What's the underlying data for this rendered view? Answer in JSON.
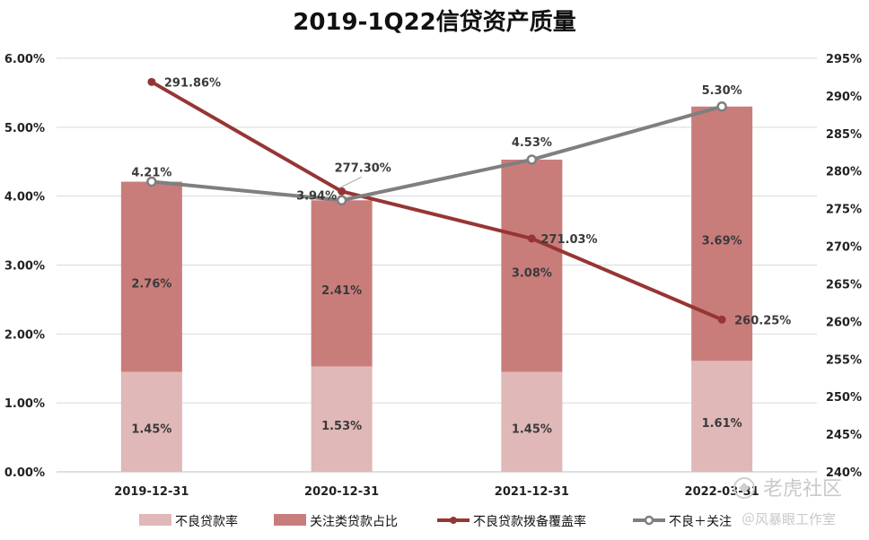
{
  "chart_data": {
    "type": "bar",
    "title": "2019-1Q22信贷资产质量",
    "categories": [
      "2019-12-31",
      "2020-12-31",
      "2021-12-31",
      "2022-03-31"
    ],
    "y_left": {
      "ticks": [
        "0.00%",
        "1.00%",
        "2.00%",
        "3.00%",
        "4.00%",
        "5.00%",
        "6.00%"
      ],
      "range": [
        0,
        6
      ]
    },
    "y_right": {
      "ticks": [
        "240%",
        "245%",
        "250%",
        "255%",
        "260%",
        "265%",
        "270%",
        "275%",
        "280%",
        "285%",
        "290%",
        "295%"
      ],
      "range": [
        240,
        295
      ]
    },
    "series": [
      {
        "name": "不良贷款率",
        "kind": "stacked-bar",
        "axis": "left",
        "color": "#e0b8b7",
        "values": [
          1.45,
          1.53,
          1.45,
          1.61
        ],
        "labels": [
          "1.45%",
          "1.53%",
          "1.45%",
          "1.61%"
        ]
      },
      {
        "name": "关注类贷款占比",
        "kind": "stacked-bar",
        "axis": "left",
        "color": "#c97d7b",
        "values": [
          2.76,
          2.41,
          3.08,
          3.69
        ],
        "labels": [
          "2.76%",
          "2.41%",
          "3.08%",
          "3.69%"
        ]
      },
      {
        "name": "不良贷款拨备覆盖率",
        "kind": "line",
        "axis": "right",
        "color": "#963634",
        "values": [
          291.86,
          277.3,
          271.03,
          260.25
        ],
        "labels": [
          "291.86%",
          "277.30%",
          "271.03%",
          "260.25%"
        ]
      },
      {
        "name": "不良＋关注",
        "kind": "line",
        "axis": "left",
        "color": "#7f7f7f",
        "values": [
          4.21,
          3.94,
          4.53,
          5.3
        ],
        "labels": [
          "4.21%",
          "3.94%",
          "4.53%",
          "5.30%"
        ]
      }
    ],
    "grid": true,
    "legend": "bottom"
  },
  "watermark": {
    "main": "老虎社区",
    "sub": "＠风暴眼工作室"
  }
}
